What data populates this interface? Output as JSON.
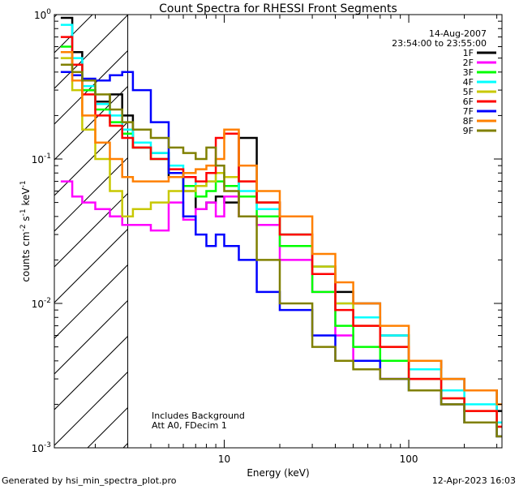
{
  "chart_data": {
    "type": "line",
    "title": "Count Spectra for RHESSI Front Segments",
    "xlabel": "Energy (keV)",
    "ylabel_parts": {
      "base": "counts cm",
      "e1": "-2",
      "mid": " s",
      "e2": "-1",
      "end": " keV",
      "e3": "-1"
    },
    "x_scale": "log",
    "y_scale": "log",
    "xlim": [
      1.2,
      320
    ],
    "ylim": [
      0.001,
      1.0
    ],
    "x_ticks": [
      {
        "value": 10,
        "label": "10"
      },
      {
        "value": 100,
        "label": "100"
      }
    ],
    "y_ticks": [
      {
        "value": 1,
        "label": "10",
        "exp": "0"
      },
      {
        "value": 0.1,
        "label": "10",
        "exp": "-1"
      },
      {
        "value": 0.01,
        "label": "10",
        "exp": "-2"
      },
      {
        "value": 0.001,
        "label": "10",
        "exp": "-3"
      }
    ],
    "date_label": "14-Aug-2007",
    "time_range_label": "23:54:00 to 23:55:00",
    "annotations": [
      "Includes Background",
      "Att A0, FDecim 1"
    ],
    "shaded_region_xmax_keV": 3.0,
    "legend_position": "top-right",
    "series": [
      {
        "name": "1F",
        "color": "#000000",
        "x": [
          1.3,
          1.5,
          1.7,
          2.0,
          2.4,
          2.8,
          3.2,
          4.0,
          5.0,
          6.0,
          7.0,
          8.0,
          9.0,
          10.0,
          12.0,
          15.0,
          20.0,
          30.0,
          40.0,
          50.0,
          70.0,
          100.0,
          150.0,
          200.0,
          300.0
        ],
        "y": [
          0.95,
          0.55,
          0.3,
          0.25,
          0.28,
          0.2,
          0.12,
          0.11,
          0.075,
          0.06,
          0.045,
          0.05,
          0.055,
          0.05,
          0.14,
          0.05,
          0.03,
          0.018,
          0.012,
          0.01,
          0.006,
          0.004,
          0.003,
          0.0025,
          0.0018
        ]
      },
      {
        "name": "2F",
        "color": "#ff00ff",
        "x": [
          1.3,
          1.5,
          1.7,
          2.0,
          2.4,
          2.8,
          3.2,
          4.0,
          5.0,
          6.0,
          7.0,
          8.0,
          9.0,
          10.0,
          12.0,
          15.0,
          20.0,
          30.0,
          40.0,
          50.0,
          70.0,
          100.0,
          150.0,
          200.0,
          300.0
        ],
        "y": [
          0.07,
          0.055,
          0.05,
          0.045,
          0.04,
          0.035,
          0.035,
          0.032,
          0.05,
          0.038,
          0.045,
          0.05,
          0.04,
          0.055,
          0.04,
          0.035,
          0.02,
          0.012,
          0.006,
          0.004,
          0.003,
          0.003,
          0.002,
          0.0015,
          0.0012
        ]
      },
      {
        "name": "3F",
        "color": "#00ff00",
        "x": [
          1.3,
          1.5,
          1.7,
          2.0,
          2.4,
          2.8,
          3.2,
          4.0,
          5.0,
          6.0,
          7.0,
          8.0,
          9.0,
          10.0,
          12.0,
          15.0,
          20.0,
          30.0,
          40.0,
          50.0,
          70.0,
          100.0,
          150.0,
          200.0,
          300.0
        ],
        "y": [
          0.6,
          0.45,
          0.3,
          0.22,
          0.18,
          0.15,
          0.12,
          0.1,
          0.08,
          0.065,
          0.055,
          0.06,
          0.07,
          0.065,
          0.055,
          0.04,
          0.025,
          0.012,
          0.007,
          0.005,
          0.004,
          0.0025,
          0.002,
          0.0015,
          0.0012
        ]
      },
      {
        "name": "4F",
        "color": "#00ffff",
        "x": [
          1.3,
          1.5,
          1.7,
          2.0,
          2.4,
          2.8,
          3.2,
          4.0,
          5.0,
          6.0,
          7.0,
          8.0,
          9.0,
          10.0,
          12.0,
          15.0,
          20.0,
          30.0,
          40.0,
          50.0,
          70.0,
          100.0,
          150.0,
          200.0,
          300.0
        ],
        "y": [
          0.85,
          0.5,
          0.32,
          0.24,
          0.2,
          0.16,
          0.13,
          0.11,
          0.09,
          0.075,
          0.065,
          0.07,
          0.08,
          0.075,
          0.06,
          0.045,
          0.03,
          0.018,
          0.01,
          0.008,
          0.006,
          0.0035,
          0.0025,
          0.002,
          0.0015
        ]
      },
      {
        "name": "5F",
        "color": "#c8c800",
        "x": [
          1.3,
          1.5,
          1.7,
          2.0,
          2.4,
          2.8,
          3.2,
          4.0,
          5.0,
          6.0,
          7.0,
          8.0,
          9.0,
          10.0,
          12.0,
          15.0,
          20.0,
          30.0,
          40.0,
          50.0,
          70.0,
          100.0,
          150.0,
          200.0,
          300.0
        ],
        "y": [
          0.5,
          0.3,
          0.16,
          0.1,
          0.06,
          0.04,
          0.045,
          0.05,
          0.06,
          0.06,
          0.065,
          0.07,
          0.08,
          0.075,
          0.07,
          0.05,
          0.03,
          0.018,
          0.01,
          0.007,
          0.005,
          0.003,
          0.0022,
          0.0018,
          0.0014
        ]
      },
      {
        "name": "6F",
        "color": "#ff0000",
        "x": [
          1.3,
          1.5,
          1.7,
          2.0,
          2.4,
          2.8,
          3.2,
          4.0,
          5.0,
          6.0,
          7.0,
          8.0,
          9.0,
          10.0,
          12.0,
          15.0,
          20.0,
          30.0,
          40.0,
          50.0,
          70.0,
          100.0,
          150.0,
          200.0,
          300.0
        ],
        "y": [
          0.7,
          0.45,
          0.28,
          0.2,
          0.17,
          0.14,
          0.12,
          0.1,
          0.085,
          0.075,
          0.07,
          0.08,
          0.14,
          0.15,
          0.07,
          0.05,
          0.03,
          0.016,
          0.009,
          0.007,
          0.005,
          0.003,
          0.0022,
          0.0018,
          0.0014
        ]
      },
      {
        "name": "7F",
        "color": "#0000ff",
        "x": [
          1.3,
          1.5,
          1.7,
          2.0,
          2.4,
          2.8,
          3.2,
          4.0,
          5.0,
          6.0,
          7.0,
          8.0,
          9.0,
          10.0,
          12.0,
          15.0,
          20.0,
          30.0,
          40.0,
          50.0,
          70.0,
          100.0,
          150.0,
          200.0,
          300.0
        ],
        "y": [
          0.4,
          0.38,
          0.36,
          0.35,
          0.38,
          0.4,
          0.3,
          0.18,
          0.08,
          0.04,
          0.03,
          0.025,
          0.03,
          0.025,
          0.02,
          0.012,
          0.009,
          0.006,
          0.004,
          0.004,
          0.003,
          0.0025,
          0.002,
          0.0015,
          0.0012
        ]
      },
      {
        "name": "8F",
        "color": "#ff8000",
        "x": [
          1.3,
          1.5,
          1.7,
          2.0,
          2.4,
          2.8,
          3.2,
          4.0,
          5.0,
          6.0,
          7.0,
          8.0,
          9.0,
          10.0,
          12.0,
          15.0,
          20.0,
          30.0,
          40.0,
          50.0,
          70.0,
          100.0,
          150.0,
          200.0,
          300.0
        ],
        "y": [
          0.55,
          0.35,
          0.2,
          0.13,
          0.1,
          0.075,
          0.07,
          0.07,
          0.075,
          0.08,
          0.085,
          0.09,
          0.1,
          0.16,
          0.09,
          0.06,
          0.04,
          0.022,
          0.014,
          0.01,
          0.007,
          0.004,
          0.003,
          0.0025,
          0.002
        ]
      },
      {
        "name": "9F",
        "color": "#808000",
        "x": [
          1.3,
          1.5,
          1.7,
          2.0,
          2.4,
          2.8,
          3.2,
          4.0,
          5.0,
          6.0,
          7.0,
          8.0,
          9.0,
          10.0,
          12.0,
          15.0,
          20.0,
          30.0,
          40.0,
          50.0,
          70.0,
          100.0,
          150.0,
          200.0,
          300.0
        ],
        "y": [
          0.45,
          0.4,
          0.35,
          0.28,
          0.22,
          0.18,
          0.16,
          0.14,
          0.12,
          0.11,
          0.1,
          0.12,
          0.09,
          0.06,
          0.04,
          0.02,
          0.01,
          0.005,
          0.004,
          0.0035,
          0.003,
          0.0025,
          0.002,
          0.0015,
          0.0012
        ]
      }
    ]
  },
  "footer": {
    "left": "Generated by hsi_min_spectra_plot.pro",
    "right": "12-Apr-2023 16:03"
  }
}
